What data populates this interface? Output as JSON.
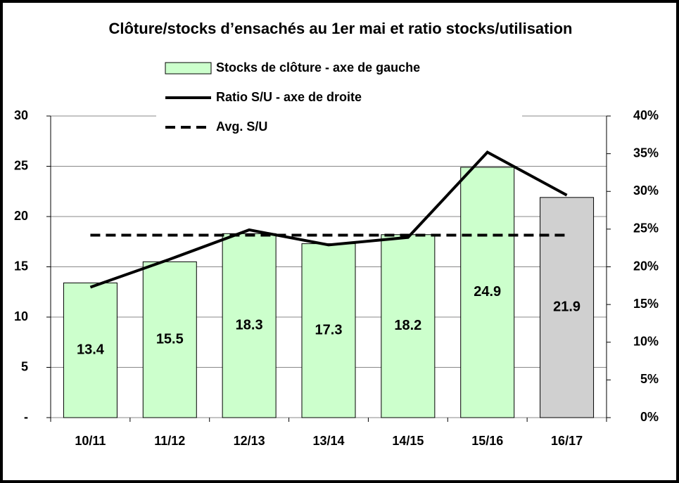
{
  "chart_data": {
    "type": "bar",
    "title": "Clôture/stocks d’ensachés au 1er mai et ratio stocks/utilisation",
    "categories": [
      "10/11",
      "11/12",
      "12/13",
      "13/14",
      "14/15",
      "15/16",
      "16/17"
    ],
    "series": [
      {
        "name": "Stocks de clôture - axe de gauche",
        "type": "bar",
        "colors": [
          "#ccffcc",
          "#ccffcc",
          "#ccffcc",
          "#ccffcc",
          "#ccffcc",
          "#ccffcc",
          "#d0d0d0"
        ],
        "values": [
          13.4,
          15.5,
          18.3,
          17.3,
          18.2,
          24.9,
          21.9
        ]
      },
      {
        "name": "Ratio S/U - axe de droite",
        "type": "line",
        "axis": "y2",
        "color": "#000000",
        "values": [
          17.3,
          21,
          24.9,
          22.9,
          23.9,
          35.2,
          29.5
        ]
      },
      {
        "name": "Avg. S/U",
        "type": "line",
        "axis": "y2",
        "color": "#000000",
        "dashed": true,
        "values": [
          24.2,
          24.2,
          24.2,
          24.2,
          24.2,
          24.2,
          24.2
        ]
      }
    ],
    "ylim": [
      0,
      30
    ],
    "yticks": [
      {
        "value": 0,
        "label": "-"
      },
      5,
      10,
      15,
      20,
      25,
      30
    ],
    "y2lim": [
      0,
      40
    ],
    "y2ticks": [
      {
        "value": 0,
        "label": "0%"
      },
      {
        "value": 5,
        "label": "5%"
      },
      {
        "value": 10,
        "label": "10%"
      },
      {
        "value": 15,
        "label": "15%"
      },
      {
        "value": 20,
        "label": "20%"
      },
      {
        "value": 25,
        "label": "25%"
      },
      {
        "value": 30,
        "label": "30%"
      },
      {
        "value": 35,
        "label": "35%"
      },
      {
        "value": 40,
        "label": "40%"
      }
    ],
    "grid": true
  }
}
